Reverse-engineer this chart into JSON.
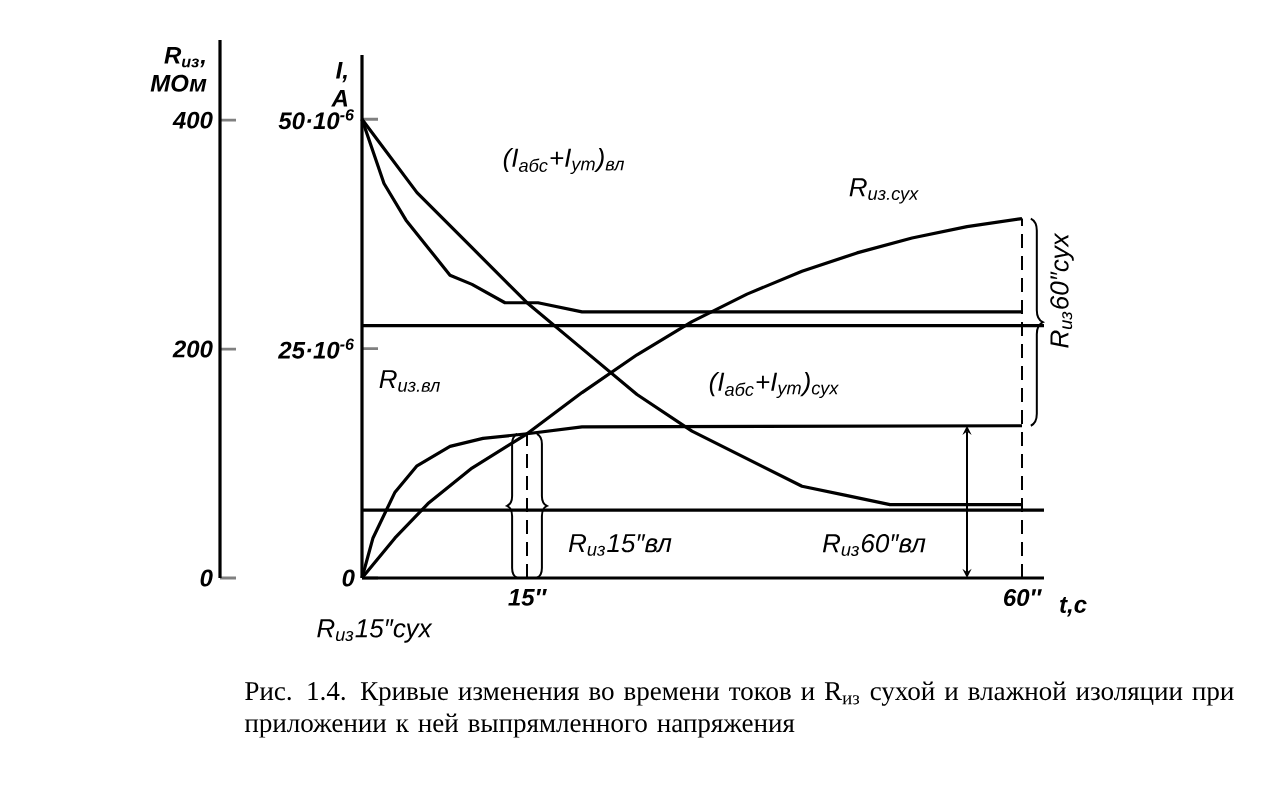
{
  "chart_data": {
    "type": "line",
    "xlabel": "t,c",
    "ylabel": "R$_{из}$, МОм",
    "y2label": "I, A",
    "xlim": [
      0,
      62
    ],
    "xticks": [
      {
        "value": 15,
        "label": "15″"
      },
      {
        "value": 60,
        "label": "60″"
      }
    ],
    "ylim": [
      0,
      470
    ],
    "yticks": [
      0,
      200,
      400
    ],
    "y2lim": [
      0,
      5.7e-05
    ],
    "y2ticks": [
      0,
      {
        "value": 2.5e-05,
        "label": "25·10$^{-6}$"
      },
      {
        "value": 5e-05,
        "label": "50·10$^{-6}$"
      }
    ],
    "series": [
      {
        "color": "#000000",
        "axis": "y2",
        "x": [
          0,
          2,
          4,
          6,
          8,
          10,
          13,
          16,
          20,
          30,
          60
        ],
        "values": [
          5e-05,
          4.3e-05,
          3.9e-05,
          3.6e-05,
          3.3e-05,
          3.2e-05,
          3e-05,
          3e-05,
          2.9e-05,
          2.9e-05,
          2.9e-05
        ]
      },
      {
        "color": "#000000",
        "axis": "y2",
        "x": [
          0,
          5,
          10,
          15,
          20,
          25,
          30,
          35,
          40,
          44,
          48,
          60
        ],
        "values": [
          5e-05,
          4.2e-05,
          3.6e-05,
          3e-05,
          2.5e-05,
          2e-05,
          1.6e-05,
          1.3e-05,
          1e-05,
          9e-06,
          8e-06,
          8e-06
        ]
      },
      {
        "color": "#000000",
        "x": [
          0,
          1,
          3,
          5,
          8,
          11,
          15,
          20,
          60
        ],
        "values": [
          0,
          35,
          75,
          98,
          115,
          122,
          126,
          132,
          133
        ]
      },
      {
        "color": "#000000",
        "x": [
          0,
          3,
          6,
          10,
          15,
          20,
          25,
          30,
          35,
          40,
          45,
          50,
          55,
          60
        ],
        "values": [
          0,
          35,
          65,
          96,
          126,
          162,
          195,
          224,
          248,
          268,
          284,
          297,
          307,
          314
        ]
      },
      {
        "color": "#000000",
        "line_style": "dashed",
        "x": [
          15,
          15
        ],
        "values": [
          0,
          126
        ]
      },
      {
        "color": "#000000",
        "line_style": "dashed",
        "x": [
          60,
          60
        ],
        "values": [
          0,
          314
        ]
      }
    ],
    "ref_lines": [
      {
        "axis": "y2",
        "value": 2.75e-05
      },
      {
        "axis": "y2",
        "value": 7.4e-06
      }
    ],
    "annotations": [
      "(I$_{абс}$+I$_{ут}$)$_{вл}$",
      "R$_{из.сух}$",
      "(I$_{абс}$+I$_{ут}$)$_{сух}$",
      "R$_{из.вл}$",
      "R$_{из}$15″вл",
      "R$_{из}$60″вл",
      "R$_{из}$15″сух",
      "R$_{из}$60″сух",
      "Рис. 1.4. Кривые изменения во времени токов и R$_{из}$ сухой и влажной изоляции при приложении к ней выпрямленного напряжения"
    ]
  }
}
